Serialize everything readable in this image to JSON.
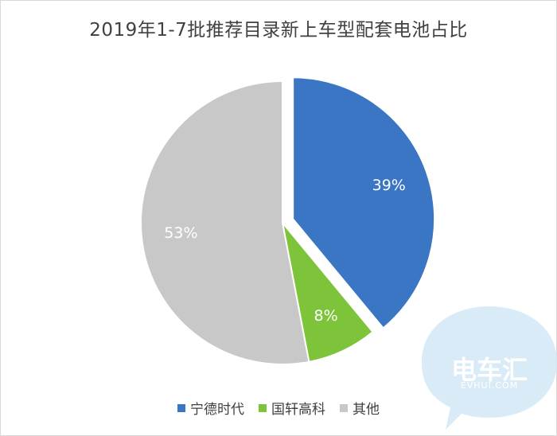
{
  "title": "2019年1-7批推荐目录新上车型配套电池占比",
  "chart_data": {
    "type": "pie",
    "title": "2019年1-7批推荐目录新上车型配套电池占比",
    "categories": [
      "宁德时代",
      "国轩高科",
      "其他"
    ],
    "values": [
      39,
      8,
      53
    ],
    "labels": [
      "39%",
      "8%",
      "53%"
    ],
    "colors": [
      "#3a76c4",
      "#7dc43b",
      "#c8c8c8"
    ],
    "exploded": "宁德时代",
    "legend_position": "bottom"
  },
  "watermark": {
    "logo": "电车汇",
    "domain": "EVHUI.COM",
    "icon": "speech-bubble-logo"
  }
}
